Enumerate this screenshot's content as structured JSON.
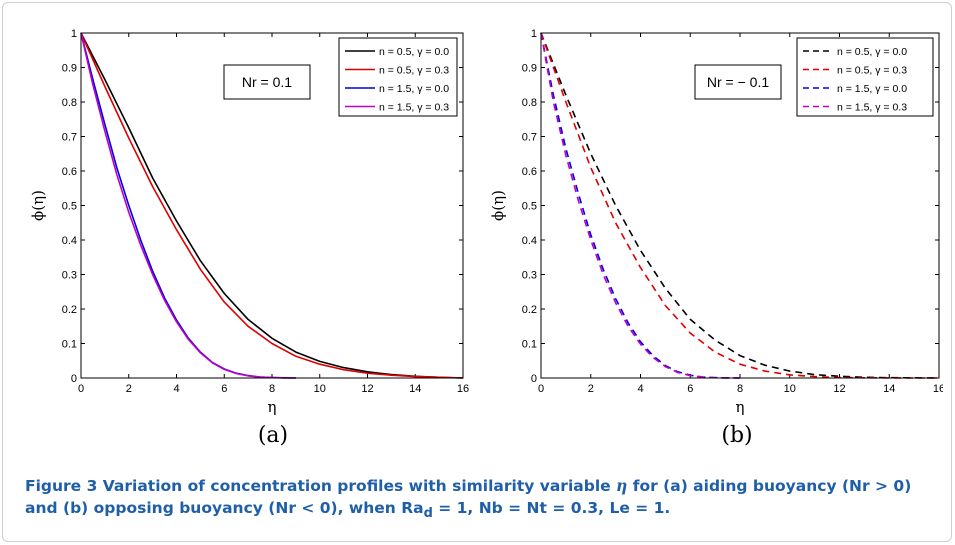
{
  "chart_data": [
    {
      "id": "a",
      "type": "line",
      "line_style": "solid",
      "xlabel": "η",
      "ylabel": "ϕ(η)",
      "xlim": [
        0,
        16
      ],
      "ylim": [
        0,
        1
      ],
      "x_ticks": [
        0,
        2,
        4,
        6,
        8,
        10,
        12,
        14,
        16
      ],
      "y_ticks": [
        0,
        0.1,
        0.2,
        0.3,
        0.4,
        0.5,
        0.6,
        0.7,
        0.8,
        0.9,
        1
      ],
      "grid": false,
      "legend_position": "top-right",
      "annotation": "Nr = 0.1",
      "sublabel": "(a)",
      "series": [
        {
          "name": "n = 0.5, γ = 0.0",
          "color": "#000000",
          "x": [
            0,
            1,
            2,
            3,
            4,
            5,
            6,
            7,
            8,
            9,
            10,
            11,
            12,
            13,
            14,
            15,
            16
          ],
          "y": [
            1.0,
            0.865,
            0.725,
            0.58,
            0.455,
            0.34,
            0.245,
            0.17,
            0.115,
            0.075,
            0.048,
            0.03,
            0.018,
            0.01,
            0.005,
            0.002,
            0.0
          ]
        },
        {
          "name": "n = 0.5, γ = 0.3",
          "color": "#e00000",
          "x": [
            0,
            1,
            2,
            3,
            4,
            5,
            6,
            7,
            8,
            9,
            10,
            11,
            12,
            13,
            14,
            15,
            16
          ],
          "y": [
            1.0,
            0.845,
            0.695,
            0.555,
            0.43,
            0.315,
            0.22,
            0.15,
            0.1,
            0.063,
            0.04,
            0.024,
            0.014,
            0.008,
            0.004,
            0.002,
            0.0
          ]
        },
        {
          "name": "n = 1.5, γ = 0.0",
          "color": "#0000e0",
          "x": [
            0,
            0.5,
            1,
            1.5,
            2,
            2.5,
            3,
            3.5,
            4,
            4.5,
            5,
            5.5,
            6,
            6.5,
            7,
            7.5,
            8,
            8.5,
            9
          ],
          "y": [
            1.0,
            0.865,
            0.735,
            0.61,
            0.5,
            0.4,
            0.31,
            0.232,
            0.168,
            0.115,
            0.075,
            0.045,
            0.026,
            0.014,
            0.007,
            0.003,
            0.0015,
            0.0005,
            0.0
          ]
        },
        {
          "name": "n = 1.5, γ = 0.3",
          "color": "#c000c0",
          "x": [
            0,
            0.5,
            1,
            1.5,
            2,
            2.5,
            3,
            3.5,
            4,
            4.5,
            5,
            5.5,
            6,
            6.5,
            7,
            7.5,
            8,
            8.5,
            9
          ],
          "y": [
            1.0,
            0.85,
            0.715,
            0.59,
            0.48,
            0.385,
            0.3,
            0.225,
            0.163,
            0.112,
            0.073,
            0.044,
            0.025,
            0.013,
            0.006,
            0.003,
            0.0012,
            0.0004,
            0.0
          ]
        }
      ]
    },
    {
      "id": "b",
      "type": "line",
      "line_style": "dashed",
      "xlabel": "η",
      "ylabel": "ϕ(η)",
      "xlim": [
        0,
        16
      ],
      "ylim": [
        0,
        1
      ],
      "x_ticks": [
        0,
        2,
        4,
        6,
        8,
        10,
        12,
        14,
        16
      ],
      "y_ticks": [
        0,
        0.1,
        0.2,
        0.3,
        0.4,
        0.5,
        0.6,
        0.7,
        0.8,
        0.9,
        1
      ],
      "grid": false,
      "legend_position": "top-right",
      "annotation": "Nr = − 0.1",
      "sublabel": "(b)",
      "series": [
        {
          "name": "n = 0.5, γ = 0.0",
          "color": "#000000",
          "x": [
            0,
            1,
            2,
            3,
            4,
            5,
            6,
            7,
            8,
            9,
            10,
            11,
            12,
            13,
            14,
            15,
            16
          ],
          "y": [
            1.0,
            0.82,
            0.65,
            0.5,
            0.37,
            0.26,
            0.17,
            0.11,
            0.065,
            0.037,
            0.02,
            0.01,
            0.005,
            0.002,
            0.001,
            0.0005,
            0.0
          ]
        },
        {
          "name": "n = 0.5, γ = 0.3",
          "color": "#e00000",
          "x": [
            0,
            1,
            2,
            3,
            4,
            5,
            6,
            7,
            8,
            9,
            10,
            11,
            12,
            13,
            14,
            15,
            16
          ],
          "y": [
            1.0,
            0.8,
            0.61,
            0.45,
            0.32,
            0.21,
            0.13,
            0.075,
            0.04,
            0.02,
            0.009,
            0.004,
            0.0015,
            0.0005,
            0.0002,
            0.0001,
            0.0
          ]
        },
        {
          "name": "n = 1.5, γ = 0.0",
          "color": "#0000e0",
          "x": [
            0,
            0.5,
            1,
            1.5,
            2,
            2.5,
            3,
            3.5,
            4,
            4.5,
            5,
            5.5,
            6,
            6.5,
            7,
            7.5,
            8
          ],
          "y": [
            1.0,
            0.82,
            0.665,
            0.535,
            0.415,
            0.315,
            0.23,
            0.16,
            0.105,
            0.065,
            0.036,
            0.018,
            0.008,
            0.003,
            0.001,
            0.0003,
            0.0
          ]
        },
        {
          "name": "n = 1.5, γ = 0.3",
          "color": "#c000c0",
          "x": [
            0,
            0.5,
            1,
            1.5,
            2,
            2.5,
            3,
            3.5,
            4,
            4.5,
            5,
            5.5,
            6,
            6.5,
            7,
            7.5,
            8
          ],
          "y": [
            1.0,
            0.8,
            0.645,
            0.515,
            0.4,
            0.3,
            0.218,
            0.15,
            0.098,
            0.06,
            0.033,
            0.016,
            0.007,
            0.0025,
            0.0008,
            0.0002,
            0.0
          ]
        }
      ]
    }
  ],
  "caption": {
    "lead": "Figure 3  Variation of concentration profiles with similarity variable ",
    "var": "η",
    "rest": " for (a) aiding buoyancy (Nr > 0) and (b) opposing buoyancy (Nr < 0), when Ra",
    "sub": "d",
    "tail": " = 1, Nb = Nt = 0.3, Le = 1."
  }
}
